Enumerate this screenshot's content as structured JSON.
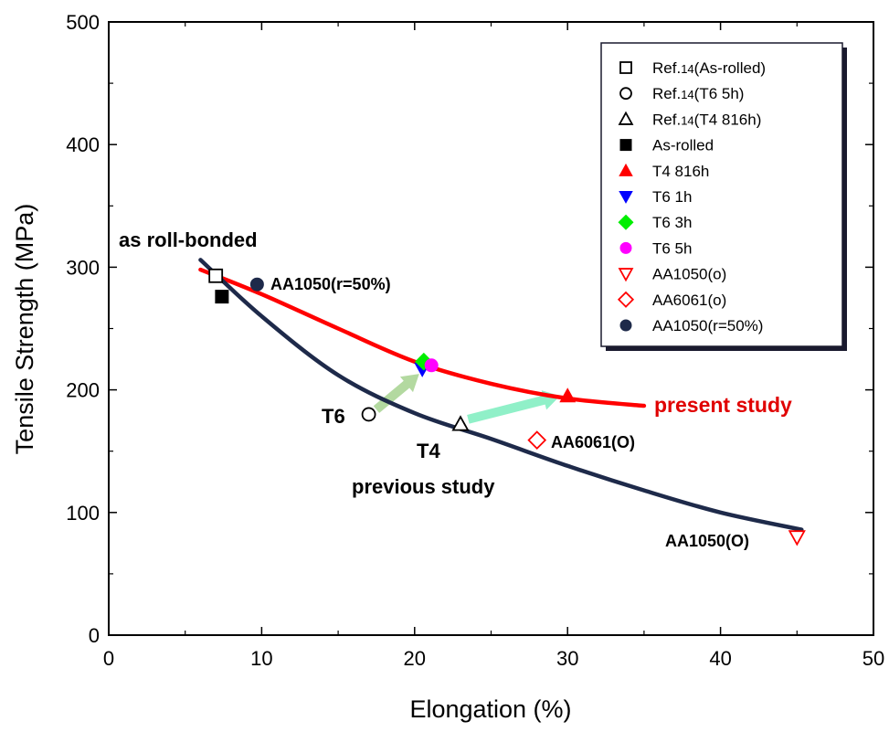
{
  "chart_data": {
    "type": "scatter",
    "xlabel": "Elongation (%)",
    "ylabel": "Tensile Strength (MPa)",
    "xlim": [
      0,
      50
    ],
    "ylim": [
      0,
      500
    ],
    "xticks": [
      "0",
      "10",
      "20",
      "30",
      "40",
      "50"
    ],
    "yticks": [
      "0",
      "100",
      "200",
      "300",
      "400",
      "500"
    ],
    "grid": false,
    "legend_position": "top-right",
    "series": [
      {
        "name": "Ref.14(As-rolled)",
        "marker": "square-open",
        "color": "#000000",
        "points": [
          {
            "x": 7.0,
            "y": 293
          }
        ]
      },
      {
        "name": "Ref.14(T6 5h)",
        "marker": "circle-open",
        "color": "#000000",
        "points": [
          {
            "x": 17.0,
            "y": 180
          }
        ]
      },
      {
        "name": "Ref.14(T4 816h)",
        "marker": "triangle-up-open",
        "color": "#000000",
        "points": [
          {
            "x": 23.0,
            "y": 172
          }
        ]
      },
      {
        "name": "As-rolled",
        "marker": "square-filled",
        "color": "#000000",
        "points": [
          {
            "x": 7.4,
            "y": 276
          }
        ]
      },
      {
        "name": "T4 816h",
        "marker": "triangle-up-filled",
        "color": "#ff0000",
        "points": [
          {
            "x": 30.0,
            "y": 195
          }
        ]
      },
      {
        "name": "T6 1h",
        "marker": "triangle-down-filled",
        "color": "#0000ff",
        "points": [
          {
            "x": 20.5,
            "y": 217
          }
        ]
      },
      {
        "name": "T6 3h",
        "marker": "diamond-filled",
        "color": "#00ee00",
        "points": [
          {
            "x": 20.6,
            "y": 223
          }
        ]
      },
      {
        "name": "T6 5h",
        "marker": "circle-filled",
        "color": "#ff00ff",
        "points": [
          {
            "x": 21.1,
            "y": 220
          }
        ]
      },
      {
        "name": "AA1050(O)",
        "marker": "triangle-down-open",
        "color": "#ff0000",
        "points": [
          {
            "x": 45.0,
            "y": 80
          }
        ]
      },
      {
        "name": "AA6061(O)",
        "marker": "diamond-open",
        "color": "#ff0000",
        "points": [
          {
            "x": 28.0,
            "y": 159
          }
        ]
      },
      {
        "name": "AA1050(r=50%)",
        "marker": "circle-filled",
        "color": "#1e2a4a",
        "points": [
          {
            "x": 9.7,
            "y": 286
          }
        ]
      }
    ],
    "curves": [
      {
        "label": "present study",
        "color": "#ff0000",
        "x": [
          6,
          10,
          15,
          20,
          25,
          30,
          35
        ],
        "y": [
          298,
          278,
          250,
          223,
          205,
          193,
          187
        ]
      },
      {
        "label": "previous study",
        "color": "#1e2a4a",
        "x": [
          6,
          10,
          15,
          20,
          25,
          30,
          35,
          40,
          45.3
        ],
        "y": [
          306,
          260,
          212,
          181,
          160,
          138,
          118,
          100,
          86
        ]
      }
    ],
    "arrows": [
      {
        "from": [
          17.5,
          184
        ],
        "to": [
          20.3,
          213
        ],
        "color": "#b3d9a0"
      },
      {
        "from": [
          23.5,
          176
        ],
        "to": [
          29.5,
          195
        ],
        "color": "#90f0c8"
      }
    ],
    "legend": {
      "entries": [
        {
          "label_main": "Ref.",
          "label_sub": "14",
          "label_rest": "(As-rolled)"
        },
        {
          "label_main": "Ref.",
          "label_sub": "14",
          "label_rest": "(T6 5h)"
        },
        {
          "label_main": "Ref.",
          "label_sub": "14",
          "label_rest": "(T4 816h)"
        },
        {
          "label_main": "As-rolled",
          "label_sub": "",
          "label_rest": ""
        },
        {
          "label_main": "T4 816h",
          "label_sub": "",
          "label_rest": ""
        },
        {
          "label_main": "T6 1h",
          "label_sub": "",
          "label_rest": ""
        },
        {
          "label_main": "T6 3h",
          "label_sub": "",
          "label_rest": ""
        },
        {
          "label_main": "T6 5h",
          "label_sub": "",
          "label_rest": ""
        },
        {
          "label_main": "AA1050",
          "label_sub": "",
          "label_rest": "(o)"
        },
        {
          "label_main": "AA6061",
          "label_sub": "",
          "label_rest": "(o)"
        },
        {
          "label_main": "AA1050",
          "label_sub": "",
          "label_rest": "(r=50%)"
        }
      ]
    },
    "annotations": {
      "as_roll_bonded": "as roll-bonded",
      "aa1050_r50": "AA1050(r=50%)",
      "t6": "T6",
      "t4": "T4",
      "previous_study": "previous study",
      "present_study": "present study",
      "aa6061_o": "AA6061(O)",
      "aa1050_o": "AA1050(O)"
    }
  }
}
